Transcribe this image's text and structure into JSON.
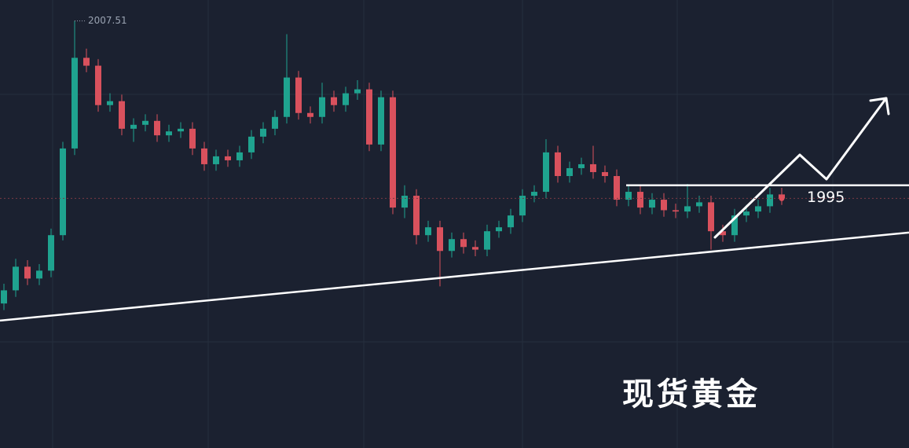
{
  "chart_data": {
    "type": "candlestick",
    "title": "现货黄金",
    "ylim": [
      1975,
      2009.1
    ],
    "up_color": "#1fa38f",
    "down_color": "#d9515d",
    "open": [
      1986.0,
      1987.0,
      1988.8,
      1987.9,
      1988.5,
      1991.2,
      1997.8,
      2004.7,
      2004.1,
      2001.1,
      2001.4,
      1999.3,
      1999.6,
      1999.9,
      1998.8,
      1999.1,
      1999.3,
      1997.8,
      1996.6,
      1997.2,
      1996.9,
      1997.5,
      1998.7,
      1999.3,
      2000.2,
      2003.2,
      2000.5,
      2000.2,
      2001.7,
      2001.1,
      2002.0,
      2002.3,
      1998.1,
      2001.7,
      1993.3,
      1994.2,
      1991.2,
      1991.8,
      1990.0,
      1990.9,
      1990.3,
      1990.1,
      1991.5,
      1991.8,
      1992.7,
      1994.2,
      1994.5,
      1997.5,
      1995.7,
      1996.3,
      1996.6,
      1996.0,
      1995.7,
      1993.9,
      1994.5,
      1993.3,
      1993.9,
      1993.1,
      1993.0,
      1993.4,
      1993.7,
      1991.5,
      1991.2,
      1992.7,
      1993.0,
      1993.4,
      1994.3
    ],
    "high": [
      1987.5,
      1989.4,
      1989.3,
      1989.0,
      1991.7,
      1998.3,
      2007.51,
      2005.4,
      2004.6,
      2002.0,
      2001.9,
      2000.1,
      2000.4,
      2000.4,
      1999.6,
      1999.8,
      1999.8,
      1998.3,
      1997.7,
      1997.7,
      1998.0,
      1999.2,
      1999.8,
      2000.7,
      2006.5,
      2003.7,
      2001.0,
      2002.8,
      2002.2,
      2002.5,
      2003.0,
      2002.8,
      2002.2,
      2002.2,
      1995.0,
      1994.7,
      1992.3,
      1992.3,
      1991.4,
      1991.4,
      1990.8,
      1992.0,
      1992.3,
      1993.2,
      1994.7,
      1995.0,
      1998.5,
      1998.0,
      1996.8,
      1997.1,
      1998.0,
      1996.5,
      1996.2,
      1995.0,
      1995.0,
      1994.4,
      1994.4,
      1993.6,
      1995.1,
      1994.2,
      1994.2,
      1992.0,
      1993.2,
      1993.5,
      1993.9,
      1994.8,
      1994.8
    ],
    "low": [
      1985.5,
      1986.5,
      1987.4,
      1987.4,
      1988.0,
      1990.8,
      1997.3,
      2003.6,
      2000.6,
      2000.6,
      1998.8,
      1998.3,
      1999.1,
      1998.3,
      1998.3,
      1998.6,
      1997.3,
      1996.1,
      1996.1,
      1996.4,
      1996.4,
      1997.0,
      1998.2,
      1998.8,
      1999.7,
      2000.0,
      1999.7,
      1999.7,
      2000.6,
      2000.6,
      2001.5,
      1997.6,
      1997.6,
      1992.8,
      1992.5,
      1990.5,
      1990.7,
      1987.3,
      1989.5,
      1989.8,
      1989.6,
      1989.6,
      1991.0,
      1991.3,
      1992.2,
      1993.7,
      1994.0,
      1995.2,
      1995.2,
      1995.8,
      1995.5,
      1995.2,
      1993.4,
      1993.4,
      1992.8,
      1992.8,
      1992.6,
      1992.5,
      1992.5,
      1992.9,
      1990.1,
      1990.7,
      1990.7,
      1992.2,
      1992.5,
      1992.9,
      1993.5
    ],
    "close": [
      1987.0,
      1988.8,
      1987.9,
      1988.5,
      1991.2,
      1997.8,
      2004.7,
      2004.1,
      2001.1,
      2001.4,
      1999.3,
      1999.6,
      1999.9,
      1998.8,
      1999.1,
      1999.3,
      1997.8,
      1996.6,
      1997.2,
      1996.9,
      1997.5,
      1998.7,
      1999.3,
      2000.2,
      2003.2,
      2000.5,
      2000.2,
      2001.7,
      2001.1,
      2002.0,
      2002.3,
      1998.1,
      2001.7,
      1993.3,
      1994.2,
      1991.2,
      1991.8,
      1990.0,
      1990.9,
      1990.3,
      1990.1,
      1991.5,
      1991.8,
      1992.7,
      1994.2,
      1994.5,
      1997.5,
      1995.7,
      1996.3,
      1996.6,
      1996.0,
      1995.7,
      1993.9,
      1994.5,
      1993.3,
      1993.9,
      1993.1,
      1993.0,
      1993.4,
      1993.7,
      1991.5,
      1991.2,
      1992.7,
      1993.0,
      1993.4,
      1994.3,
      1994.0
    ],
    "level": 1995,
    "trendline": [
      1984.7,
      1991.4
    ]
  }
}
